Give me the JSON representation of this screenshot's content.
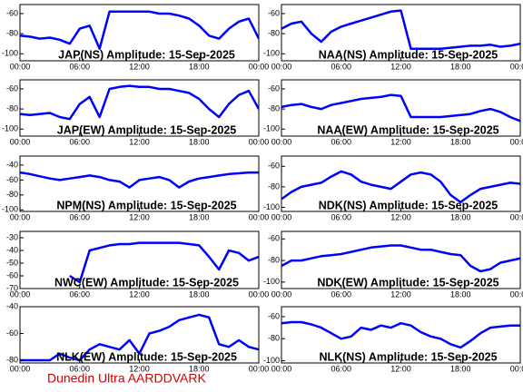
{
  "chart_data": [
    {
      "type": "line",
      "title": "JAP(NS) Amplitude: 15-Sep-2025",
      "color": "#0000ff",
      "x": [
        0,
        1,
        2,
        3,
        4,
        5,
        6,
        7,
        8,
        9,
        10,
        11,
        12,
        13,
        14,
        15,
        16,
        17,
        18,
        19,
        20,
        21,
        22,
        23,
        24
      ],
      "values": [
        -82,
        -83,
        -85,
        -84,
        -86,
        -90,
        -75,
        -72,
        -95,
        -58,
        -58,
        -58,
        -58,
        -58,
        -60,
        -60,
        -62,
        -65,
        -72,
        -82,
        -85,
        -75,
        -68,
        -65,
        -85
      ],
      "xlim": [
        0,
        24
      ],
      "xticks": [
        {
          "value": 0,
          "label": "00:00"
        },
        {
          "value": 6,
          "label": "06:00"
        },
        {
          "value": 12,
          "label": "12:00"
        },
        {
          "value": 18,
          "label": "18:00"
        },
        {
          "value": 24,
          "label": "00:00"
        }
      ],
      "ylim": [
        -107,
        -51
      ],
      "yticks": [
        -60,
        -80,
        -100
      ]
    },
    {
      "type": "line",
      "title": "NAA(NS) Amplitude: 15-Sep-2025",
      "color": "#0000ff",
      "x": [
        0,
        1,
        2,
        3,
        4,
        5,
        6,
        7,
        8,
        9,
        10,
        11,
        12,
        13,
        14,
        15,
        16,
        17,
        18,
        19,
        20,
        21,
        22,
        23,
        24
      ],
      "values": [
        -75,
        -70,
        -68,
        -80,
        -88,
        -78,
        -73,
        -70,
        -67,
        -64,
        -61,
        -58,
        -57,
        -95,
        -95,
        -95,
        -95,
        -94,
        -93,
        -92,
        -92,
        -91,
        -93,
        -92,
        -90
      ],
      "xlim": [
        0,
        24
      ],
      "xticks": [
        {
          "value": 0,
          "label": "00:00"
        },
        {
          "value": 6,
          "label": "06:00"
        },
        {
          "value": 12,
          "label": "12:00"
        },
        {
          "value": 18,
          "label": "18:00"
        },
        {
          "value": 24,
          "label": "00:00"
        }
      ],
      "ylim": [
        -107,
        -51
      ],
      "yticks": [
        -60,
        -80,
        -100
      ]
    },
    {
      "type": "line",
      "title": "JAP(EW) Amplitude: 15-Sep-2025",
      "color": "#0000ff",
      "x": [
        0,
        1,
        2,
        3,
        4,
        5,
        6,
        7,
        8,
        9,
        10,
        11,
        12,
        13,
        14,
        15,
        16,
        17,
        18,
        19,
        20,
        21,
        22,
        23,
        24
      ],
      "values": [
        -85,
        -86,
        -85,
        -84,
        -88,
        -90,
        -75,
        -68,
        -88,
        -60,
        -58,
        -57,
        -58,
        -58,
        -60,
        -60,
        -62,
        -64,
        -70,
        -80,
        -88,
        -75,
        -66,
        -62,
        -80
      ],
      "xlim": [
        0,
        24
      ],
      "xticks": [
        {
          "value": 0,
          "label": "00:00"
        },
        {
          "value": 6,
          "label": "06:00"
        },
        {
          "value": 12,
          "label": "12:00"
        },
        {
          "value": 18,
          "label": "18:00"
        },
        {
          "value": 24,
          "label": "00:00"
        }
      ],
      "ylim": [
        -107,
        -51
      ],
      "yticks": [
        -60,
        -80,
        -100
      ]
    },
    {
      "type": "line",
      "title": "NAA(EW) Amplitude: 15-Sep-2025",
      "color": "#0000ff",
      "x": [
        0,
        1,
        2,
        3,
        4,
        5,
        6,
        7,
        8,
        9,
        10,
        11,
        12,
        13,
        14,
        15,
        16,
        17,
        18,
        19,
        20,
        21,
        22,
        23,
        24
      ],
      "values": [
        -78,
        -76,
        -75,
        -78,
        -80,
        -76,
        -74,
        -72,
        -70,
        -69,
        -68,
        -66,
        -67,
        -88,
        -88,
        -88,
        -88,
        -87,
        -86,
        -85,
        -82,
        -80,
        -83,
        -88,
        -92
      ],
      "xlim": [
        0,
        24
      ],
      "xticks": [
        {
          "value": 0,
          "label": "00:00"
        },
        {
          "value": 6,
          "label": "06:00"
        },
        {
          "value": 12,
          "label": "12:00"
        },
        {
          "value": 18,
          "label": "18:00"
        },
        {
          "value": 24,
          "label": "00:00"
        }
      ],
      "ylim": [
        -107,
        -51
      ],
      "yticks": [
        -60,
        -80,
        -100
      ]
    },
    {
      "type": "line",
      "title": "NPM(NS) Amplitude: 15-Sep-2025",
      "color": "#0000ff",
      "x": [
        0,
        1,
        2,
        3,
        4,
        5,
        6,
        7,
        8,
        9,
        10,
        11,
        12,
        13,
        14,
        15,
        16,
        17,
        18,
        19,
        20,
        21,
        22,
        23,
        24
      ],
      "values": [
        -50,
        -52,
        -55,
        -58,
        -60,
        -58,
        -56,
        -54,
        -56,
        -60,
        -62,
        -70,
        -60,
        -58,
        -56,
        -60,
        -70,
        -62,
        -58,
        -56,
        -54,
        -52,
        -51,
        -50,
        -50
      ],
      "xlim": [
        0,
        24
      ],
      "xticks": [
        {
          "value": 0,
          "label": "00:00"
        },
        {
          "value": 6,
          "label": "06:00"
        },
        {
          "value": 12,
          "label": "12:00"
        },
        {
          "value": 18,
          "label": "18:00"
        },
        {
          "value": 24,
          "label": "00:00"
        }
      ],
      "ylim": [
        -102,
        -28
      ],
      "yticks": [
        -40,
        -60,
        -80,
        -100
      ]
    },
    {
      "type": "line",
      "title": "NDK(NS) Amplitude: 15-Sep-2025",
      "color": "#0000ff",
      "x": [
        0,
        1,
        2,
        3,
        4,
        5,
        6,
        7,
        8,
        9,
        10,
        11,
        12,
        13,
        14,
        15,
        16,
        17,
        18,
        19,
        20,
        21,
        22,
        23,
        24
      ],
      "values": [
        -92,
        -85,
        -80,
        -78,
        -76,
        -70,
        -65,
        -68,
        -75,
        -78,
        -80,
        -82,
        -75,
        -68,
        -66,
        -68,
        -75,
        -88,
        -95,
        -88,
        -82,
        -80,
        -78,
        -76,
        -77
      ],
      "xlim": [
        0,
        24
      ],
      "xticks": [
        {
          "value": 0,
          "label": "00:00"
        },
        {
          "value": 6,
          "label": "06:00"
        },
        {
          "value": 12,
          "label": "12:00"
        },
        {
          "value": 18,
          "label": "18:00"
        },
        {
          "value": 24,
          "label": "00:00"
        }
      ],
      "ylim": [
        -104,
        -50
      ],
      "yticks": [
        -60,
        -80,
        -100
      ]
    },
    {
      "type": "line",
      "title": "NWC(EW) Amplitude: 15-Sep-2025",
      "color": "#0000ff",
      "x": [
        0,
        1,
        2,
        3,
        4,
        5,
        6,
        7,
        8,
        9,
        10,
        11,
        12,
        13,
        14,
        15,
        16,
        17,
        18,
        19,
        20,
        21,
        22,
        23,
        24
      ],
      "values": [
        null,
        null,
        null,
        null,
        null,
        -60,
        -65,
        -40,
        -38,
        -36,
        -35,
        -35,
        -34,
        -34,
        -34,
        -34,
        -34,
        -35,
        -36,
        -45,
        -55,
        -40,
        -42,
        -48,
        -45
      ],
      "xlim": [
        0,
        24
      ],
      "xticks": [
        {
          "value": 0,
          "label": "00:00"
        },
        {
          "value": 6,
          "label": "06:00"
        },
        {
          "value": 12,
          "label": "12:00"
        },
        {
          "value": 18,
          "label": "18:00"
        },
        {
          "value": 24,
          "label": "00:00"
        }
      ],
      "ylim": [
        -70,
        -25
      ],
      "yticks": [
        -30,
        -40,
        -50,
        -60,
        -70
      ]
    },
    {
      "type": "line",
      "title": "NDK(EW) Amplitude: 15-Sep-2025",
      "color": "#0000ff",
      "x": [
        0,
        1,
        2,
        3,
        4,
        5,
        6,
        7,
        8,
        9,
        10,
        11,
        12,
        13,
        14,
        15,
        16,
        17,
        18,
        19,
        20,
        21,
        22,
        23,
        24
      ],
      "values": [
        -85,
        -80,
        -80,
        -78,
        -76,
        -75,
        -74,
        -72,
        -70,
        -68,
        -67,
        -66,
        -66,
        -68,
        -70,
        -70,
        -72,
        -74,
        -75,
        -85,
        -90,
        -88,
        -82,
        -80,
        -78
      ],
      "xlim": [
        0,
        24
      ],
      "xticks": [
        {
          "value": 0,
          "label": "00:00"
        },
        {
          "value": 6,
          "label": "06:00"
        },
        {
          "value": 12,
          "label": "12:00"
        },
        {
          "value": 18,
          "label": "18:00"
        },
        {
          "value": 24,
          "label": "00:00"
        }
      ],
      "ylim": [
        -106,
        -53
      ],
      "yticks": [
        -60,
        -80,
        -100
      ]
    },
    {
      "type": "line",
      "title": "NLK(EW) Amplitude: 15-Sep-2025",
      "color": "#0000ff",
      "x": [
        0,
        1,
        2,
        3,
        4,
        5,
        6,
        7,
        8,
        9,
        10,
        11,
        12,
        13,
        14,
        15,
        16,
        17,
        18,
        19,
        20,
        21,
        22,
        23,
        24
      ],
      "values": [
        -80,
        -80,
        -80,
        -80,
        -75,
        -78,
        -80,
        -72,
        -68,
        -70,
        -72,
        -65,
        -75,
        -60,
        -58,
        -55,
        -50,
        -48,
        -46,
        -48,
        -68,
        -70,
        -65,
        -70,
        -72
      ],
      "xlim": [
        0,
        24
      ],
      "xticks": [
        {
          "value": 0,
          "label": "00:00"
        },
        {
          "value": 6,
          "label": "06:00"
        },
        {
          "value": 12,
          "label": "12:00"
        },
        {
          "value": 18,
          "label": "18:00"
        },
        {
          "value": 24,
          "label": "00:00"
        }
      ],
      "ylim": [
        -82,
        -40
      ],
      "yticks": [
        -40,
        -60,
        -80
      ]
    },
    {
      "type": "line",
      "title": "NLK(NS) Amplitude: 15-Sep-2025",
      "color": "#0000ff",
      "x": [
        0,
        1,
        2,
        3,
        4,
        5,
        6,
        7,
        8,
        9,
        10,
        11,
        12,
        13,
        14,
        15,
        16,
        17,
        18,
        19,
        20,
        21,
        22,
        23,
        24
      ],
      "values": [
        -66,
        -65,
        -65,
        -67,
        -70,
        -75,
        -80,
        -78,
        -70,
        -72,
        -68,
        -70,
        -66,
        -68,
        -74,
        -78,
        -80,
        -85,
        -88,
        -82,
        -75,
        -70,
        -69,
        -68,
        -68
      ],
      "xlim": [
        0,
        24
      ],
      "xticks": [
        {
          "value": 0,
          "label": "00:00"
        },
        {
          "value": 6,
          "label": "06:00"
        },
        {
          "value": 12,
          "label": "12:00"
        },
        {
          "value": 18,
          "label": "18:00"
        },
        {
          "value": 24,
          "label": "00:00"
        }
      ],
      "ylim": [
        -102,
        -51
      ],
      "yticks": [
        -60,
        -80,
        -100
      ]
    }
  ],
  "footer": "Dunedin Ultra AARDDVARK"
}
